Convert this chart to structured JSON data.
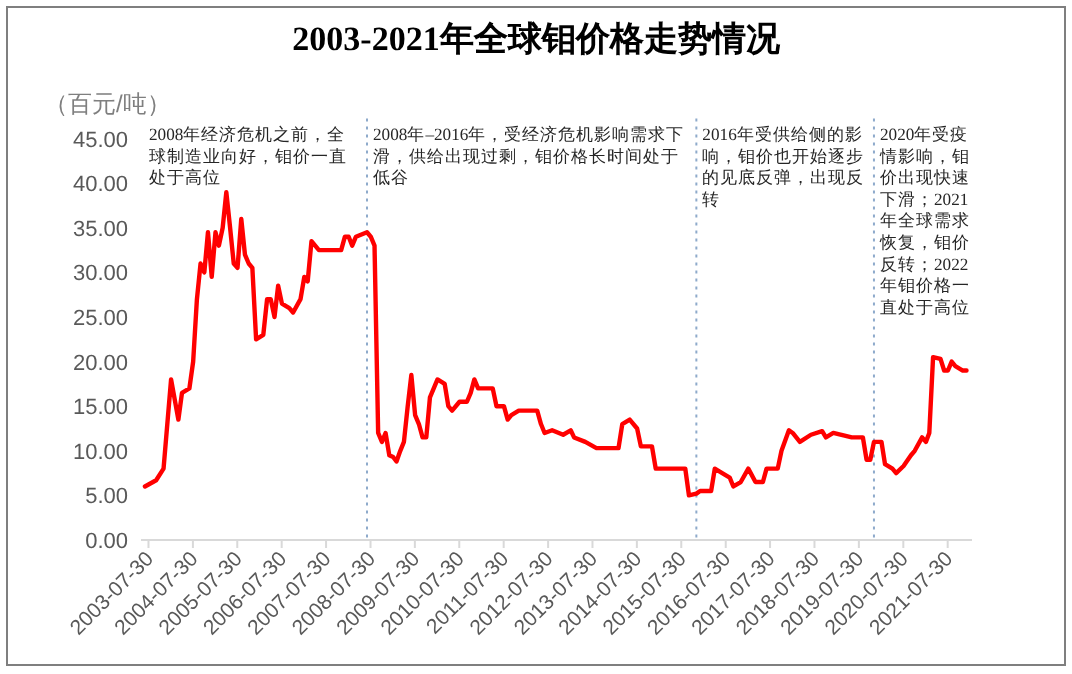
{
  "chart_data": {
    "type": "line",
    "title": "2003-2021年全球钼价格走势情况",
    "ylabel": "（百元/吨）",
    "x": [
      "2003-07",
      "2003-10",
      "2003-12",
      "2004-02",
      "2004-04",
      "2004-05",
      "2004-07",
      "2004-08",
      "2004-09",
      "2004-10",
      "2004-11",
      "2004-12",
      "2005-01",
      "2005-02",
      "2005-03",
      "2005-04",
      "2005-05",
      "2005-06",
      "2005-07",
      "2005-08",
      "2005-09",
      "2005-10",
      "2005-11",
      "2005-12",
      "2006-01",
      "2006-03",
      "2006-04",
      "2006-05",
      "2006-06",
      "2006-07",
      "2006-08",
      "2006-10",
      "2006-11",
      "2007-01",
      "2007-02",
      "2007-03",
      "2007-04",
      "2007-06",
      "2007-12",
      "2008-01",
      "2008-02",
      "2008-03",
      "2008-04",
      "2008-07",
      "2008-08",
      "2008-09",
      "2008-10",
      "2008-11",
      "2008-12",
      "2009-01",
      "2009-02",
      "2009-03",
      "2009-04",
      "2009-05",
      "2009-06",
      "2009-07",
      "2009-08",
      "2009-09",
      "2009-10",
      "2009-11",
      "2009-12",
      "2010-02",
      "2010-04",
      "2010-05",
      "2010-06",
      "2010-08",
      "2010-10",
      "2010-11",
      "2010-12",
      "2011-01",
      "2011-05",
      "2011-06",
      "2011-08",
      "2011-09",
      "2011-10",
      "2011-12",
      "2012-05",
      "2012-06",
      "2012-07",
      "2012-09",
      "2012-12",
      "2013-02",
      "2013-03",
      "2013-06",
      "2013-09",
      "2014-03",
      "2014-04",
      "2014-06",
      "2014-08",
      "2014-09",
      "2014-12",
      "2015-01",
      "2015-09",
      "2015-10",
      "2015-12",
      "2016-01",
      "2016-04",
      "2016-05",
      "2016-07",
      "2016-09",
      "2016-10",
      "2016-12",
      "2017-02",
      "2017-04",
      "2017-06",
      "2017-07",
      "2017-10",
      "2017-11",
      "2018-01",
      "2018-02",
      "2018-04",
      "2018-07",
      "2018-10",
      "2018-11",
      "2019-01",
      "2019-06",
      "2019-09",
      "2019-10",
      "2019-11",
      "2019-12",
      "2020-02",
      "2020-03",
      "2020-05",
      "2020-06",
      "2020-08",
      "2020-10",
      "2020-11",
      "2021-01",
      "2021-02",
      "2021-03",
      "2021-04",
      "2021-06",
      "2021-07",
      "2021-08",
      "2021-09",
      "2021-10",
      "2021-12",
      "2022-01"
    ],
    "series": [
      {
        "color": "#ff0000",
        "values": [
          6.0,
          6.7,
          8,
          18,
          13.5,
          16.5,
          17,
          20,
          27,
          31,
          30,
          34.5,
          29.5,
          34.5,
          33,
          35,
          39,
          35,
          31,
          30.5,
          36,
          32,
          31,
          30.5,
          22.5,
          23,
          27,
          27,
          25,
          28.5,
          26.5,
          26,
          25.5,
          27,
          29.5,
          29,
          33.5,
          32.5,
          32.5,
          34,
          34,
          33,
          34,
          34.5,
          34,
          33,
          12,
          11,
          12,
          9.5,
          9.3,
          8.8,
          10,
          11,
          15,
          18.5,
          14,
          13,
          11.5,
          11.5,
          16,
          18,
          17.5,
          15,
          14.5,
          15.5,
          15.5,
          16.5,
          18,
          17,
          17,
          15,
          15,
          13.5,
          14,
          14.5,
          14.5,
          13,
          12,
          12.3,
          11.8,
          12.3,
          11.5,
          11,
          10.3,
          10.3,
          13,
          13.5,
          12.5,
          10.5,
          10.5,
          8,
          8,
          5,
          5.2,
          5.5,
          5.5,
          8,
          7.5,
          7,
          6,
          6.5,
          8,
          6.5,
          6.5,
          8,
          8,
          10,
          12.3,
          12,
          11,
          11.8,
          12.2,
          11.5,
          12,
          11.5,
          11.5,
          9,
          9,
          11,
          11,
          8.5,
          8,
          7.5,
          8.3,
          9.5,
          10,
          11.5,
          11,
          12,
          20.5,
          20.3,
          19,
          19,
          20,
          19.5,
          19,
          19
        ]
      }
    ],
    "xlim": [
      "2003-06-15",
      "2022-02-15"
    ],
    "xticks": [
      "2003-07-30",
      "2004-07-30",
      "2005-07-30",
      "2006-07-30",
      "2007-07-30",
      "2008-07-30",
      "2009-07-30",
      "2010-07-30",
      "2011-07-30",
      "2012-07-30",
      "2013-07-30",
      "2014-07-30",
      "2015-07-30",
      "2016-07-30",
      "2017-07-30",
      "2018-07-30",
      "2019-07-30",
      "2020-07-30",
      "2021-07-30"
    ],
    "ylim": [
      0,
      45
    ],
    "yticks": [
      {
        "value": 0,
        "label": "0.00"
      },
      {
        "value": 5,
        "label": "5.00"
      },
      {
        "value": 10,
        "label": "10.00"
      },
      {
        "value": 15,
        "label": "15.00"
      },
      {
        "value": 20,
        "label": "20.00"
      },
      {
        "value": 25,
        "label": "25.00"
      },
      {
        "value": 30,
        "label": "30.00"
      },
      {
        "value": 35,
        "label": "35.00"
      },
      {
        "value": 40,
        "label": "40.00"
      },
      {
        "value": 45,
        "label": "45.00"
      }
    ],
    "ref_lines": [
      {
        "axis": "x",
        "value": "2008-07",
        "color": "#8eaacb",
        "line_style": "dotted"
      },
      {
        "axis": "x",
        "value": "2015-12",
        "color": "#8eaacb",
        "line_style": "dotted"
      },
      {
        "axis": "x",
        "value": "2019-12",
        "color": "#8eaacb",
        "line_style": "dotted"
      }
    ],
    "annotations": [
      "2008年经济危机之前，全球制造业向好，钼价一直处于高位",
      "2008年–2016年，受经济危机影响需求下滑，供给出现过剩，钼价格长时间处于低谷",
      "2016年受供给侧的影响，钼价也开始逐步的见底反弹，出现反转",
      "2020年受疫情影响，钼价出现快速下滑；2021年全球需求恢复，钼价反转；2022年钼价格一直处于高位"
    ],
    "line_style": "solid"
  }
}
